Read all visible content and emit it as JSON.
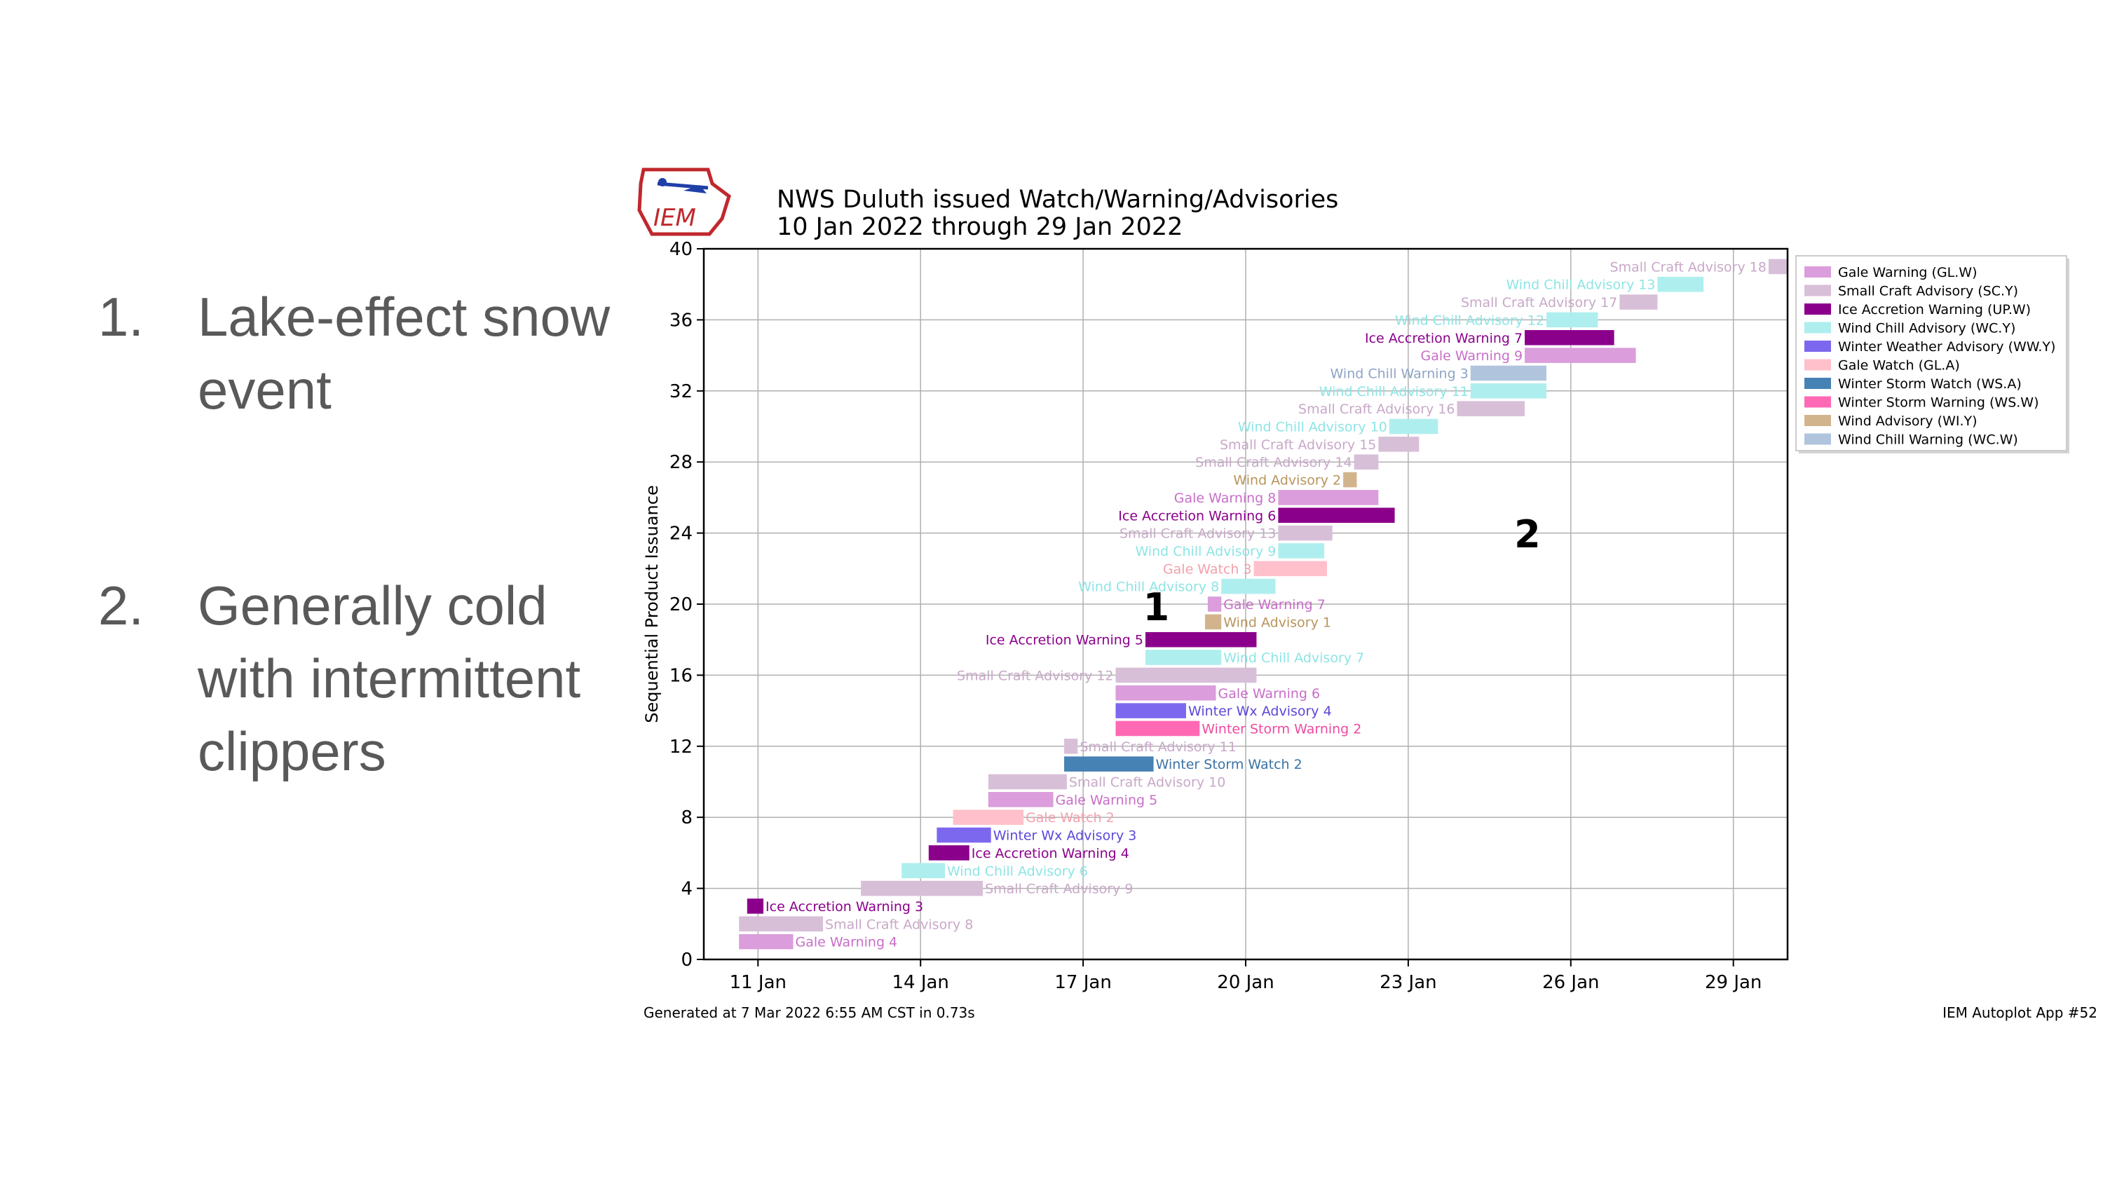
{
  "slide": {
    "bullets": [
      {
        "num": "1.",
        "text": "Lake-effect snow event"
      },
      {
        "num": "2.",
        "text": "Generally cold with intermittent clippers"
      }
    ]
  },
  "logo": {
    "text": "IEM"
  },
  "footer": {
    "generated": "Generated at 7 Mar 2022 6:55 AM CST in 0.73s",
    "app": "IEM Autoplot App #52"
  },
  "chart_data": {
    "type": "gantt",
    "title": "NWS Duluth issued Watch/Warning/Advisories",
    "subtitle": "10 Jan 2022 through 29 Jan 2022",
    "xlabel": "",
    "ylabel": "Sequential Product Issuance",
    "xlim": [
      "10 Jan",
      "30 Jan"
    ],
    "ylim": [
      0,
      40
    ],
    "xticks": [
      11,
      14,
      17,
      20,
      23,
      26,
      29
    ],
    "xtick_labels": [
      "11 Jan",
      "14 Jan",
      "17 Jan",
      "20 Jan",
      "23 Jan",
      "26 Jan",
      "29 Jan"
    ],
    "yticks": [
      0,
      4,
      8,
      12,
      16,
      20,
      24,
      28,
      32,
      36,
      40
    ],
    "grid": true,
    "legend_position": "right",
    "phenomena": {
      "GL.W": {
        "label": "Gale Warning (GL.W)",
        "color": "#db9ddb"
      },
      "SC.Y": {
        "label": "Small Craft Advisory (SC.Y)",
        "color": "#d8bfd8"
      },
      "UP.W": {
        "label": "Ice Accretion Warning (UP.W)",
        "color": "#8b008b"
      },
      "WC.Y": {
        "label": "Wind Chill Advisory (WC.Y)",
        "color": "#afeeee"
      },
      "WW.Y": {
        "label": "Winter Weather Advisory (WW.Y)",
        "color": "#7b68ee"
      },
      "GL.A": {
        "label": "Gale Watch (GL.A)",
        "color": "#ffc0cb"
      },
      "WS.A": {
        "label": "Winter Storm Watch (WS.A)",
        "color": "#4682b4"
      },
      "WS.W": {
        "label": "Winter Storm Warning (WS.W)",
        "color": "#ff69b4"
      },
      "WI.Y": {
        "label": "Wind Advisory (WI.Y)",
        "color": "#d2b48c"
      },
      "WC.W": {
        "label": "Wind Chill Warning (WC.W)",
        "color": "#b0c4de"
      }
    },
    "legend_order": [
      "GL.W",
      "SC.Y",
      "UP.W",
      "WC.Y",
      "WW.Y",
      "GL.A",
      "WS.A",
      "WS.W",
      "WI.Y",
      "WC.W"
    ],
    "events": [
      {
        "label": "Gale Warning 4",
        "ph": "GL.W",
        "y": 1,
        "start": 10.65,
        "end": 11.65,
        "side": "right"
      },
      {
        "label": "Small Craft Advisory 8",
        "ph": "SC.Y",
        "y": 2,
        "start": 10.65,
        "end": 12.2,
        "side": "right"
      },
      {
        "label": "Ice Accretion Warning 3",
        "ph": "UP.W",
        "y": 3,
        "start": 10.8,
        "end": 11.1,
        "side": "right"
      },
      {
        "label": "Small Craft Advisory 9",
        "ph": "SC.Y",
        "y": 4,
        "start": 12.9,
        "end": 15.15,
        "side": "right"
      },
      {
        "label": "Wind Chill Advisory 6",
        "ph": "WC.Y",
        "y": 5,
        "start": 13.65,
        "end": 14.45,
        "side": "right"
      },
      {
        "label": "Ice Accretion Warning 4",
        "ph": "UP.W",
        "y": 6,
        "start": 14.15,
        "end": 14.9,
        "side": "right"
      },
      {
        "label": "Winter Wx Advisory 3",
        "ph": "WW.Y",
        "y": 7,
        "start": 14.3,
        "end": 15.3,
        "side": "right"
      },
      {
        "label": "Gale Watch 2",
        "ph": "GL.A",
        "y": 8,
        "start": 14.6,
        "end": 15.9,
        "side": "right"
      },
      {
        "label": "Gale Warning 5",
        "ph": "GL.W",
        "y": 9,
        "start": 15.25,
        "end": 16.45,
        "side": "right"
      },
      {
        "label": "Small Craft Advisory 10",
        "ph": "SC.Y",
        "y": 10,
        "start": 15.25,
        "end": 16.7,
        "side": "right"
      },
      {
        "label": "Winter Storm Watch 2",
        "ph": "WS.A",
        "y": 11,
        "start": 16.65,
        "end": 18.3,
        "side": "right"
      },
      {
        "label": "Small Craft Advisory 11",
        "ph": "SC.Y",
        "y": 12,
        "start": 16.65,
        "end": 16.9,
        "side": "right"
      },
      {
        "label": "Winter Storm Warning 2",
        "ph": "WS.W",
        "y": 13,
        "start": 17.6,
        "end": 19.15,
        "side": "right"
      },
      {
        "label": "Winter Wx Advisory 4",
        "ph": "WW.Y",
        "y": 14,
        "start": 17.6,
        "end": 18.9,
        "side": "right"
      },
      {
        "label": "Gale Warning 6",
        "ph": "GL.W",
        "y": 15,
        "start": 17.6,
        "end": 19.45,
        "side": "right"
      },
      {
        "label": "Small Craft Advisory 12",
        "ph": "SC.Y",
        "y": 16,
        "start": 17.6,
        "end": 20.2,
        "side": "left"
      },
      {
        "label": "Wind Chill Advisory 7",
        "ph": "WC.Y",
        "y": 17,
        "start": 18.15,
        "end": 19.55,
        "side": "right"
      },
      {
        "label": "Ice Accretion Warning 5",
        "ph": "UP.W",
        "y": 18,
        "start": 18.15,
        "end": 20.2,
        "side": "left"
      },
      {
        "label": "Wind Advisory 1",
        "ph": "WI.Y",
        "y": 19,
        "start": 19.25,
        "end": 19.55,
        "side": "right"
      },
      {
        "label": "Gale Warning 7",
        "ph": "GL.W",
        "y": 20,
        "start": 19.3,
        "end": 19.55,
        "side": "right"
      },
      {
        "label": "Wind Chill Advisory 8",
        "ph": "WC.Y",
        "y": 21,
        "start": 19.55,
        "end": 20.55,
        "side": "left"
      },
      {
        "label": "Gale Watch 3",
        "ph": "GL.A",
        "y": 22,
        "start": 20.15,
        "end": 21.5,
        "side": "left"
      },
      {
        "label": "Wind Chill Advisory 9",
        "ph": "WC.Y",
        "y": 23,
        "start": 20.6,
        "end": 21.45,
        "side": "left"
      },
      {
        "label": "Small Craft Advisory 13",
        "ph": "SC.Y",
        "y": 24,
        "start": 20.6,
        "end": 21.6,
        "side": "left"
      },
      {
        "label": "Ice Accretion Warning 6",
        "ph": "UP.W",
        "y": 25,
        "start": 20.6,
        "end": 22.75,
        "side": "left"
      },
      {
        "label": "Gale Warning 8",
        "ph": "GL.W",
        "y": 26,
        "start": 20.6,
        "end": 22.45,
        "side": "left"
      },
      {
        "label": "Wind Advisory 2",
        "ph": "WI.Y",
        "y": 27,
        "start": 21.8,
        "end": 22.05,
        "side": "left"
      },
      {
        "label": "Small Craft Advisory 14",
        "ph": "SC.Y",
        "y": 28,
        "start": 22.0,
        "end": 22.45,
        "side": "left"
      },
      {
        "label": "Small Craft Advisory 15",
        "ph": "SC.Y",
        "y": 29,
        "start": 22.45,
        "end": 23.2,
        "side": "left"
      },
      {
        "label": "Wind Chill Advisory 10",
        "ph": "WC.Y",
        "y": 30,
        "start": 22.65,
        "end": 23.55,
        "side": "left"
      },
      {
        "label": "Small Craft Advisory 16",
        "ph": "SC.Y",
        "y": 31,
        "start": 23.9,
        "end": 25.15,
        "side": "left"
      },
      {
        "label": "Wind Chill Advisory 11",
        "ph": "WC.Y",
        "y": 32,
        "start": 24.15,
        "end": 25.55,
        "side": "left"
      },
      {
        "label": "Wind Chill Warning 3",
        "ph": "WC.W",
        "y": 33,
        "start": 24.15,
        "end": 25.55,
        "side": "left"
      },
      {
        "label": "Gale Warning 9",
        "ph": "GL.W",
        "y": 34,
        "start": 25.15,
        "end": 27.2,
        "side": "left"
      },
      {
        "label": "Ice Accretion Warning 7",
        "ph": "UP.W",
        "y": 35,
        "start": 25.15,
        "end": 26.8,
        "side": "left"
      },
      {
        "label": "Wind Chill Advisory 12",
        "ph": "WC.Y",
        "y": 36,
        "start": 25.55,
        "end": 26.5,
        "side": "left"
      },
      {
        "label": "Small Craft Advisory 17",
        "ph": "SC.Y",
        "y": 37,
        "start": 26.9,
        "end": 27.6,
        "side": "left"
      },
      {
        "label": "Wind Chill Advisory 13",
        "ph": "WC.Y",
        "y": 38,
        "start": 27.6,
        "end": 28.45,
        "side": "left"
      },
      {
        "label": "Small Craft Advisory 18",
        "ph": "SC.Y",
        "y": 39,
        "start": 29.65,
        "end": 30.0,
        "side": "left"
      }
    ],
    "annotations": [
      {
        "text": "1",
        "x": 18.35,
        "y": 19.1
      },
      {
        "text": "2",
        "x": 25.2,
        "y": 23.2
      }
    ]
  }
}
